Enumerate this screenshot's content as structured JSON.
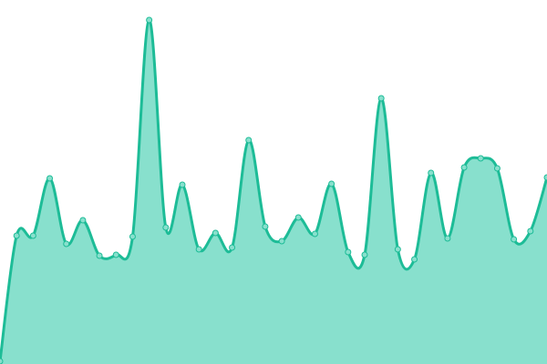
{
  "chart_data": {
    "type": "area",
    "title": "",
    "xlabel": "",
    "ylabel": "",
    "grid": false,
    "legend": "none",
    "smooth": true,
    "ylim": [
      0,
      400
    ],
    "x": [
      0,
      1,
      2,
      3,
      4,
      5,
      6,
      7,
      8,
      9,
      10,
      11,
      12,
      13,
      14,
      15,
      16,
      17,
      18,
      19,
      20,
      21,
      22,
      23,
      24,
      25,
      26,
      27,
      28,
      29,
      30,
      31,
      32,
      33
    ],
    "values": [
      3,
      141,
      141,
      204,
      132,
      158,
      119,
      120,
      140,
      378,
      150,
      197,
      126,
      144,
      128,
      246,
      151,
      135,
      161,
      143,
      198,
      123,
      120,
      292,
      126,
      115,
      210,
      138,
      216,
      226,
      215,
      137,
      146,
      205
    ],
    "colors": {
      "line": "#1dbc97",
      "fill": "#88e0cd",
      "marker_fill": "#88e0cd",
      "marker_stroke": "#1dbc97"
    }
  }
}
